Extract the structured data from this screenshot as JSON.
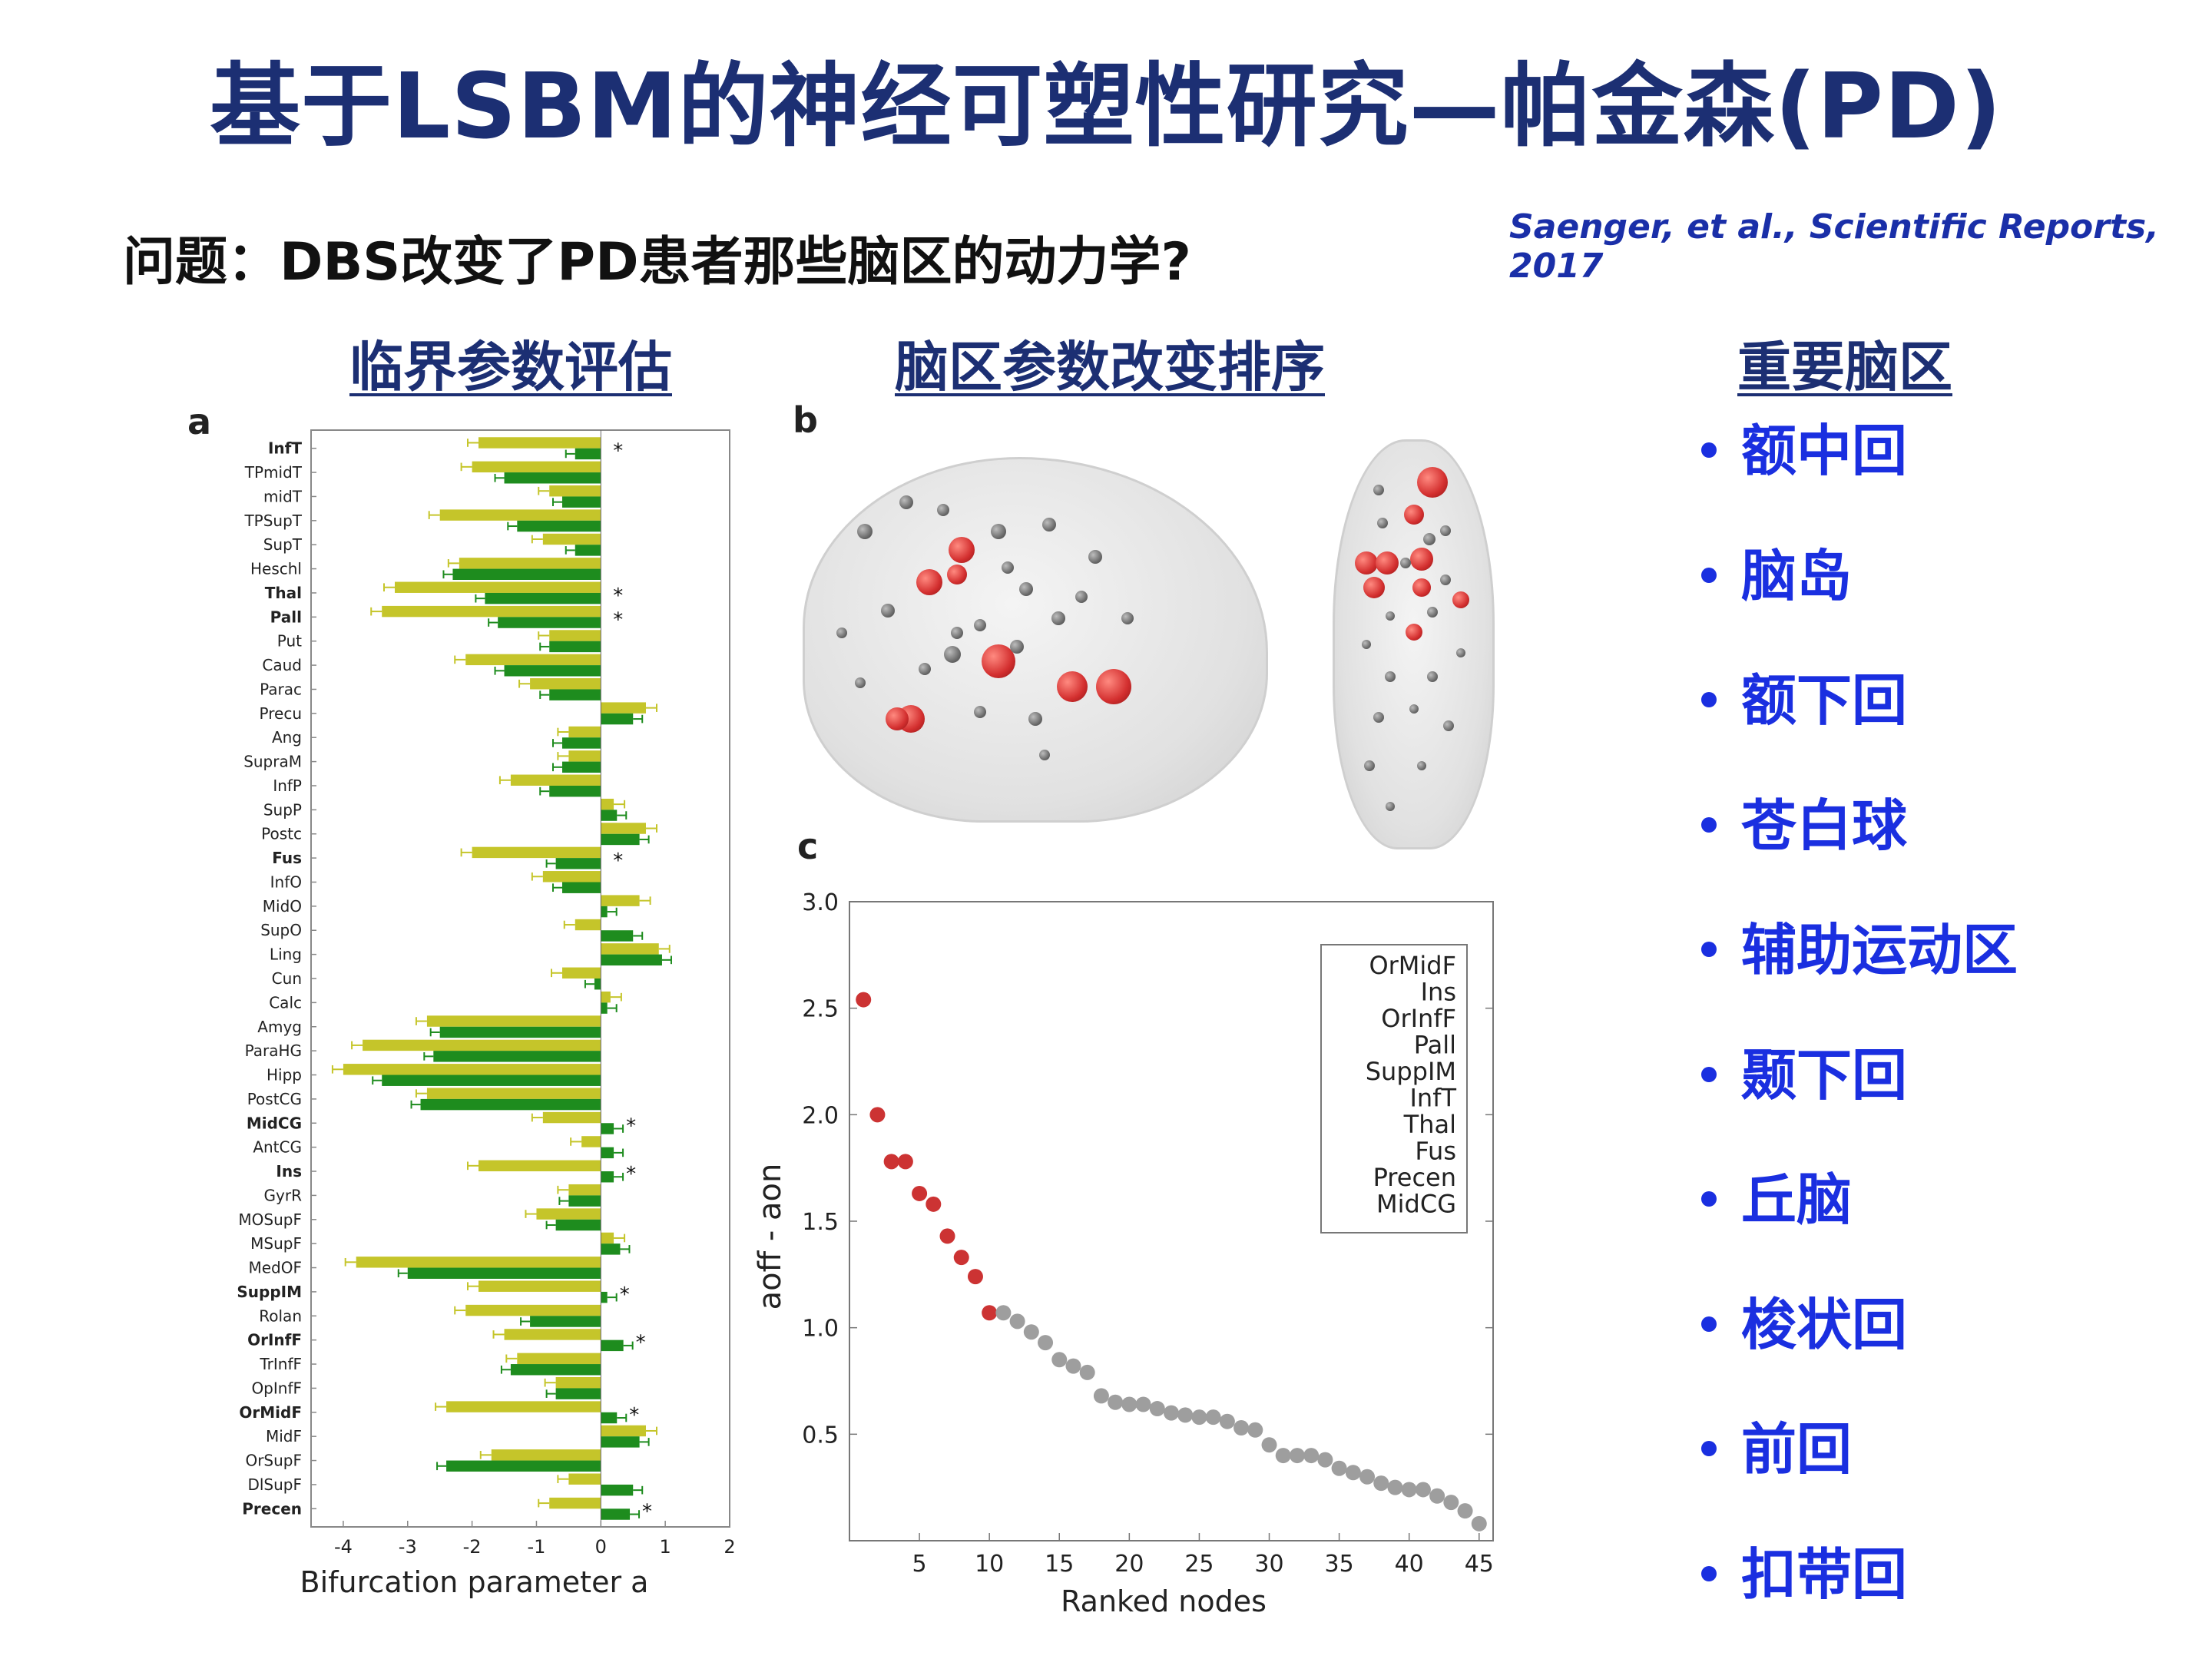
{
  "title": "基于LSBM的神经可塑性研究—帕金森(PD)",
  "question": "问题：DBS改变了PD患者那些脑区的动力学?",
  "citation": "Saenger, et al., Scientific Reports, 2017",
  "sections": {
    "critical": "临界参数评估",
    "ranking": "脑区参数改变排序",
    "important": "重要脑区"
  },
  "panel_labels": {
    "a": "a",
    "b": "b",
    "c": "c"
  },
  "important_regions": [
    "额中回",
    "脑岛",
    "额下回",
    "苍白球",
    "辅助运动区",
    "颞下回",
    "丘脑",
    "梭状回",
    "前回",
    "扣带回"
  ],
  "colors": {
    "off": "#c5c52a",
    "on": "#1e8c1e",
    "red_node": "#cc3333",
    "gray_node": "#9e9e9e",
    "title": "#1c2f73",
    "region_text": "#1a2fe0"
  },
  "chart_data": [
    {
      "type": "bar",
      "orientation": "horizontal",
      "xlabel": "Bifurcation parameter a",
      "xlim": [
        -4.5,
        2
      ],
      "xticks": [
        -4,
        -3,
        -2,
        -1,
        0,
        1,
        2
      ],
      "categories": [
        "InfT",
        "TPmidT",
        "midT",
        "TPSupT",
        "SupT",
        "Heschl",
        "Thal",
        "Pall",
        "Put",
        "Caud",
        "Parac",
        "Precu",
        "Ang",
        "SupraM",
        "InfP",
        "SupP",
        "Postc",
        "Fus",
        "InfO",
        "MidO",
        "SupO",
        "Ling",
        "Cun",
        "Calc",
        "Amyg",
        "ParaHG",
        "Hipp",
        "PostCG",
        "MidCG",
        "AntCG",
        "Ins",
        "GyrR",
        "MOSupF",
        "MSupF",
        "MedOF",
        "SuppIM",
        "Rolan",
        "OrInfF",
        "TrInfF",
        "OpInfF",
        "OrMidF",
        "MidF",
        "OrSupF",
        "DlSupF",
        "Precen"
      ],
      "bold_categories": [
        "InfT",
        "Thal",
        "Pall",
        "Fus",
        "MidCG",
        "Ins",
        "SuppIM",
        "OrInfF",
        "OrMidF",
        "Precen"
      ],
      "starred": [
        "InfT",
        "Thal",
        "Pall",
        "Fus",
        "MidCG",
        "Ins",
        "SuppIM",
        "OrInfF",
        "OrMidF",
        "Precen"
      ],
      "series": [
        {
          "name": "off",
          "values": [
            -1.9,
            -2.0,
            -0.8,
            -2.5,
            -0.9,
            -2.2,
            -3.2,
            -3.4,
            -0.8,
            -2.1,
            -1.1,
            0.7,
            -0.5,
            -0.5,
            -1.4,
            0.2,
            0.7,
            -2.0,
            -0.9,
            0.6,
            -0.4,
            0.9,
            -0.6,
            0.15,
            -2.7,
            -3.7,
            -4.0,
            -2.7,
            -0.9,
            -0.3,
            -1.9,
            -0.5,
            -1.0,
            0.2,
            -3.8,
            -1.9,
            -2.1,
            -1.5,
            -1.3,
            -0.7,
            -2.4,
            0.7,
            -1.7,
            -0.5,
            -0.8
          ]
        },
        {
          "name": "on",
          "values": [
            -0.4,
            -1.5,
            -0.6,
            -1.3,
            -0.4,
            -2.3,
            -1.8,
            -1.6,
            -0.8,
            -1.5,
            -0.8,
            0.5,
            -0.6,
            -0.6,
            -0.8,
            0.25,
            0.6,
            -0.7,
            -0.6,
            0.1,
            0.5,
            0.95,
            -0.1,
            0.1,
            -2.5,
            -2.6,
            -3.4,
            -2.8,
            0.2,
            0.2,
            0.2,
            -0.5,
            -0.7,
            0.3,
            -3.0,
            0.1,
            -1.1,
            0.35,
            -1.4,
            -0.7,
            0.25,
            0.6,
            -2.4,
            0.5,
            0.45
          ]
        }
      ]
    },
    {
      "type": "scatter",
      "xlabel": "Ranked nodes",
      "ylabel": "aoff - aon",
      "xlim": [
        0,
        46
      ],
      "ylim": [
        0.0,
        3.0
      ],
      "xticks": [
        5,
        10,
        15,
        20,
        25,
        30,
        35,
        40,
        45
      ],
      "yticks": [
        0.5,
        1.0,
        1.5,
        2.0,
        2.5,
        3.0
      ],
      "legend_entries": [
        "OrMidF",
        "Ins",
        "OrInfF",
        "Pall",
        "SuppIM",
        "InfT",
        "Thal",
        "Fus",
        "Precen",
        "MidCG"
      ],
      "legend_position": "top-right",
      "highlight_count": 10,
      "x": [
        1,
        2,
        3,
        4,
        5,
        6,
        7,
        8,
        9,
        10,
        11,
        12,
        13,
        14,
        15,
        16,
        17,
        18,
        19,
        20,
        21,
        22,
        23,
        24,
        25,
        26,
        27,
        28,
        29,
        30,
        31,
        32,
        33,
        34,
        35,
        36,
        37,
        38,
        39,
        40,
        41,
        42,
        43,
        44,
        45
      ],
      "y": [
        2.54,
        2.0,
        1.78,
        1.78,
        1.63,
        1.58,
        1.43,
        1.33,
        1.24,
        1.07,
        1.07,
        1.03,
        0.98,
        0.93,
        0.85,
        0.82,
        0.79,
        0.68,
        0.65,
        0.64,
        0.64,
        0.62,
        0.6,
        0.59,
        0.58,
        0.58,
        0.56,
        0.53,
        0.52,
        0.45,
        0.4,
        0.4,
        0.4,
        0.38,
        0.34,
        0.32,
        0.3,
        0.27,
        0.25,
        0.24,
        0.24,
        0.21,
        0.18,
        0.14,
        0.08
      ]
    }
  ]
}
